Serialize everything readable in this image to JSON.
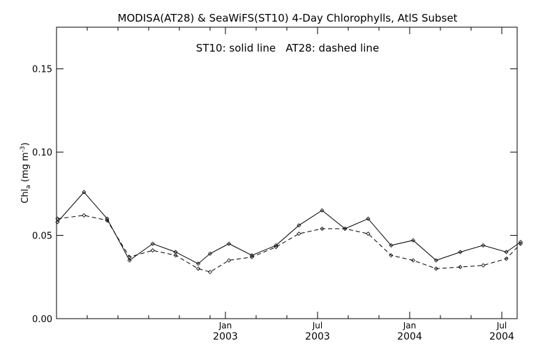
{
  "chart_data": {
    "type": "line",
    "title": "MODISA(AT28) & SeaWiFS(ST10) 4-Day Chlorophylls, AtlS Subset",
    "annotation": "ST10: solid line   AT28: dashed line",
    "xlabel": "",
    "ylabel": {
      "main": "Chl",
      "sub": "a",
      "units_pre": " (mg m",
      "units_sup": "-3",
      "units_post": ")"
    },
    "x_unit": "month",
    "xlim": [
      "2002-02",
      "2004-08"
    ],
    "ylim": [
      0.0,
      0.175
    ],
    "y_ticks": [
      {
        "value": 0.0,
        "label": "0.00"
      },
      {
        "value": 0.05,
        "label": "0.05"
      },
      {
        "value": 0.1,
        "label": "0.10"
      },
      {
        "value": 0.15,
        "label": "0.15"
      }
    ],
    "x_ticks": [
      {
        "value": "2003-01",
        "label": "Jan",
        "label2": "2003"
      },
      {
        "value": "2003-07",
        "label": "Jul",
        "label2": "2003"
      },
      {
        "value": "2004-01",
        "label": "Jan",
        "label2": "2004"
      },
      {
        "value": "2004-07",
        "label": "Jul",
        "label2": "2004"
      }
    ],
    "x_minor_ticks": [
      "2002-04",
      "2002-06",
      "2002-08",
      "2002-10",
      "2002-12",
      "2003-03",
      "2003-05",
      "2003-09",
      "2003-11",
      "2004-03",
      "2004-05"
    ],
    "grid": false,
    "series": [
      {
        "name": "ST10",
        "style": "solid",
        "color": "#000000",
        "x": [
          "2002-02-03",
          "2002-03-25",
          "2002-05-10",
          "2002-06-24",
          "2002-08-09",
          "2002-09-24",
          "2002-11-08",
          "2002-12-01",
          "2003-01-08",
          "2003-02-23",
          "2003-04-10",
          "2003-05-25",
          "2003-07-10",
          "2003-08-25",
          "2003-10-10",
          "2003-11-25",
          "2004-01-08",
          "2004-02-23",
          "2004-04-10",
          "2004-05-25",
          "2004-07-10",
          "2004-08-08"
        ],
        "values": [
          0.058,
          0.076,
          0.06,
          0.035,
          0.045,
          0.04,
          0.033,
          0.039,
          0.045,
          0.038,
          0.044,
          0.056,
          0.065,
          0.054,
          0.06,
          0.044,
          0.047,
          0.035,
          0.04,
          0.044,
          0.04,
          0.046
        ]
      },
      {
        "name": "AT28",
        "style": "dashed",
        "color": "#000000",
        "x": [
          "2002-02-03",
          "2002-03-25",
          "2002-05-10",
          "2002-06-24",
          "2002-08-09",
          "2002-09-24",
          "2002-11-08",
          "2002-12-01",
          "2003-01-08",
          "2003-02-23",
          "2003-04-10",
          "2003-05-25",
          "2003-07-10",
          "2003-08-25",
          "2003-10-10",
          "2003-11-25",
          "2004-01-08",
          "2004-02-23",
          "2004-04-10",
          "2004-05-25",
          "2004-07-10",
          "2004-08-08"
        ],
        "values": [
          0.06,
          0.062,
          0.059,
          0.037,
          0.041,
          0.038,
          0.03,
          0.028,
          0.035,
          0.037,
          0.043,
          0.051,
          0.054,
          0.054,
          0.051,
          0.038,
          0.035,
          0.03,
          0.031,
          0.032,
          0.036,
          0.045
        ]
      }
    ]
  }
}
